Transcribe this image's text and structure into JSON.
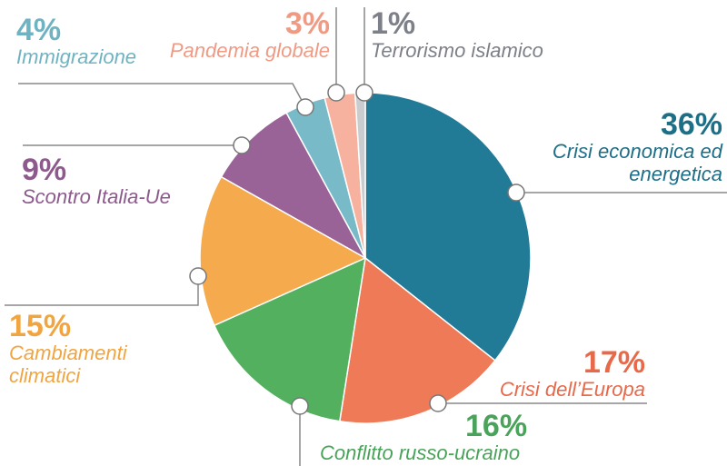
{
  "chart_data": {
    "type": "pie",
    "categories": [
      "Crisi economica ed energetica",
      "Crisi dell’Europa",
      "Conflitto russo-ucraino",
      "Cambiamenti climatici",
      "Scontro Italia-Ue",
      "Immigrazione",
      "Pandemia globale",
      "Terrorismo islamico"
    ],
    "values": [
      36,
      17,
      16,
      15,
      9,
      4,
      3,
      1
    ],
    "value_labels": [
      "36%",
      "17%",
      "16%",
      "15%",
      "9%",
      "4%",
      "3%",
      "1%"
    ],
    "colors": [
      "#217a96",
      "#ee7a57",
      "#52b05e",
      "#f4aa4d",
      "#996398",
      "#79bac8",
      "#f6b29f",
      "#c9cdd0"
    ],
    "label_colors": [
      "#1d6e87",
      "#e8694a",
      "#4aa35a",
      "#f0a540",
      "#8e5a8d",
      "#6fb3c3",
      "#f09a83",
      "#7d8088"
    ]
  }
}
